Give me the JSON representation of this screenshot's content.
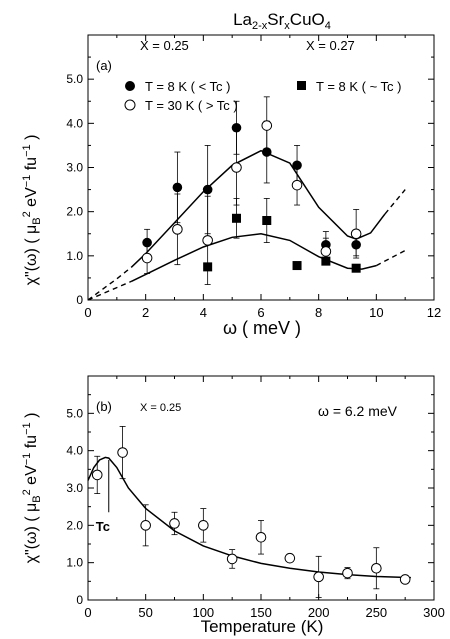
{
  "figure_title": {
    "main": "La",
    "sub1": "2-x",
    "mid1": "Sr",
    "sub2": "x",
    "tail": "CuO",
    "sub3": "4"
  },
  "chart_data": [
    {
      "panel_label": "(a)",
      "type": "scatter",
      "xlabel": "ω ( meV )",
      "ylabel": {
        "prefix": "χ\"(ω) ( μ",
        "sub": "B",
        "sup1": "2",
        "mid": " eV",
        "sup2": "−1",
        "mid2": " fu",
        "sup3": "−1",
        "suffix": " )"
      },
      "xlim": [
        0,
        12
      ],
      "ylim": [
        0,
        6
      ],
      "xticks": [
        0,
        2,
        4,
        6,
        8,
        10,
        12
      ],
      "yticks": [
        0,
        1,
        2,
        3,
        4,
        5
      ],
      "ytick_labels": [
        "0",
        "1.0",
        "2.0",
        "3.0",
        "4.0",
        "5.0"
      ],
      "annotations": {
        "x_025": "X = 0.25",
        "x_027": "X = 0.27"
      },
      "series": [
        {
          "name": "T =  8  K ( < Tc )",
          "marker": "filled-circle",
          "x": [
            2.05,
            3.1,
            4.15,
            5.15,
            6.2,
            7.25,
            8.25,
            9.3
          ],
          "y": [
            1.3,
            2.55,
            2.5,
            3.9,
            3.35,
            3.05,
            1.25,
            1.25
          ],
          "err": [
            0.3,
            0.8,
            1.0,
            0.6,
            0.7,
            0.45,
            0.3,
            0.25
          ]
        },
        {
          "name": "T = 30 K ( > Tc )",
          "marker": "open-circle",
          "x": [
            2.05,
            3.1,
            4.15,
            5.15,
            6.2,
            7.25,
            8.25,
            9.3
          ],
          "y": [
            0.95,
            1.6,
            1.35,
            3.0,
            3.95,
            2.6,
            1.1,
            1.5
          ],
          "err": [
            0.35,
            0.8,
            1.0,
            0.85,
            0.65,
            0.45,
            0.3,
            0.55
          ]
        },
        {
          "name": "T = 8 K ( ~ Tc )",
          "marker": "filled-square",
          "x": [
            4.15,
            5.15,
            6.2,
            7.25,
            8.25,
            9.3
          ],
          "y": [
            0.75,
            1.85,
            1.8,
            0.78,
            0.88,
            0.72
          ],
          "err": [
            0,
            0.45,
            0.5,
            0,
            0,
            0
          ]
        }
      ],
      "fit_curves": [
        {
          "x": [
            0,
            1,
            1.5,
            2,
            3,
            4,
            5,
            6,
            7,
            8,
            9,
            9.3,
            9.8,
            10.3,
            11
          ],
          "y": [
            0,
            0.48,
            0.74,
            1.05,
            1.75,
            2.45,
            3.05,
            3.38,
            3.1,
            2.1,
            1.45,
            1.38,
            1.52,
            1.95,
            2.5
          ],
          "dashed_below": 1.5,
          "dashed_above": 10.3
        },
        {
          "x": [
            0,
            1,
            1.5,
            2,
            3,
            4,
            5,
            6,
            7,
            8,
            9,
            9.5,
            10,
            10.5,
            11
          ],
          "y": [
            0,
            0.28,
            0.42,
            0.58,
            0.9,
            1.2,
            1.42,
            1.5,
            1.35,
            0.98,
            0.72,
            0.7,
            0.78,
            0.95,
            1.12
          ],
          "dashed_below": 1.5,
          "dashed_above": 10.0
        }
      ]
    },
    {
      "panel_label": "(b)",
      "type": "scatter",
      "xlabel": "Temperature (K)",
      "ylabel": {
        "prefix": "χ\"(ω) ( μ",
        "sub": "B",
        "sup1": "2",
        "mid": " eV",
        "sup2": "−1",
        "mid2": " fu",
        "sup3": "−1",
        "suffix": " )"
      },
      "xlim": [
        0,
        300
      ],
      "ylim": [
        0,
        6
      ],
      "xticks": [
        0,
        50,
        100,
        150,
        200,
        250,
        300
      ],
      "yticks": [
        0,
        1,
        2,
        3,
        4,
        5
      ],
      "ytick_labels": [
        "0",
        "1.0",
        "2.0",
        "3.0",
        "4.0",
        "5.0"
      ],
      "annotations": {
        "x_025": "X = 0.25",
        "omega": "ω = 6.2 meV",
        "tc": "Tc",
        "tc_at": 18
      },
      "series": [
        {
          "name": "",
          "marker": "open-circle",
          "x": [
            8,
            30,
            50,
            75,
            100,
            125,
            150,
            175,
            200,
            225,
            250,
            275
          ],
          "y": [
            3.35,
            3.95,
            2.0,
            2.05,
            2.0,
            1.1,
            1.68,
            1.12,
            0.62,
            0.72,
            0.85,
            0.55
          ],
          "err": [
            0.5,
            0.7,
            0.55,
            0.3,
            0.45,
            0.25,
            0.45,
            0.0,
            0.55,
            0.15,
            0.55,
            0.0
          ]
        }
      ],
      "fit_curves": [
        {
          "x": [
            0,
            5,
            10,
            15,
            18,
            25,
            35,
            50,
            75,
            100,
            125,
            150,
            175,
            200,
            225,
            250,
            280
          ],
          "y": [
            3.2,
            3.55,
            3.75,
            3.82,
            3.8,
            3.55,
            3.0,
            2.45,
            1.85,
            1.45,
            1.18,
            0.98,
            0.85,
            0.75,
            0.68,
            0.63,
            0.6
          ]
        }
      ]
    }
  ]
}
